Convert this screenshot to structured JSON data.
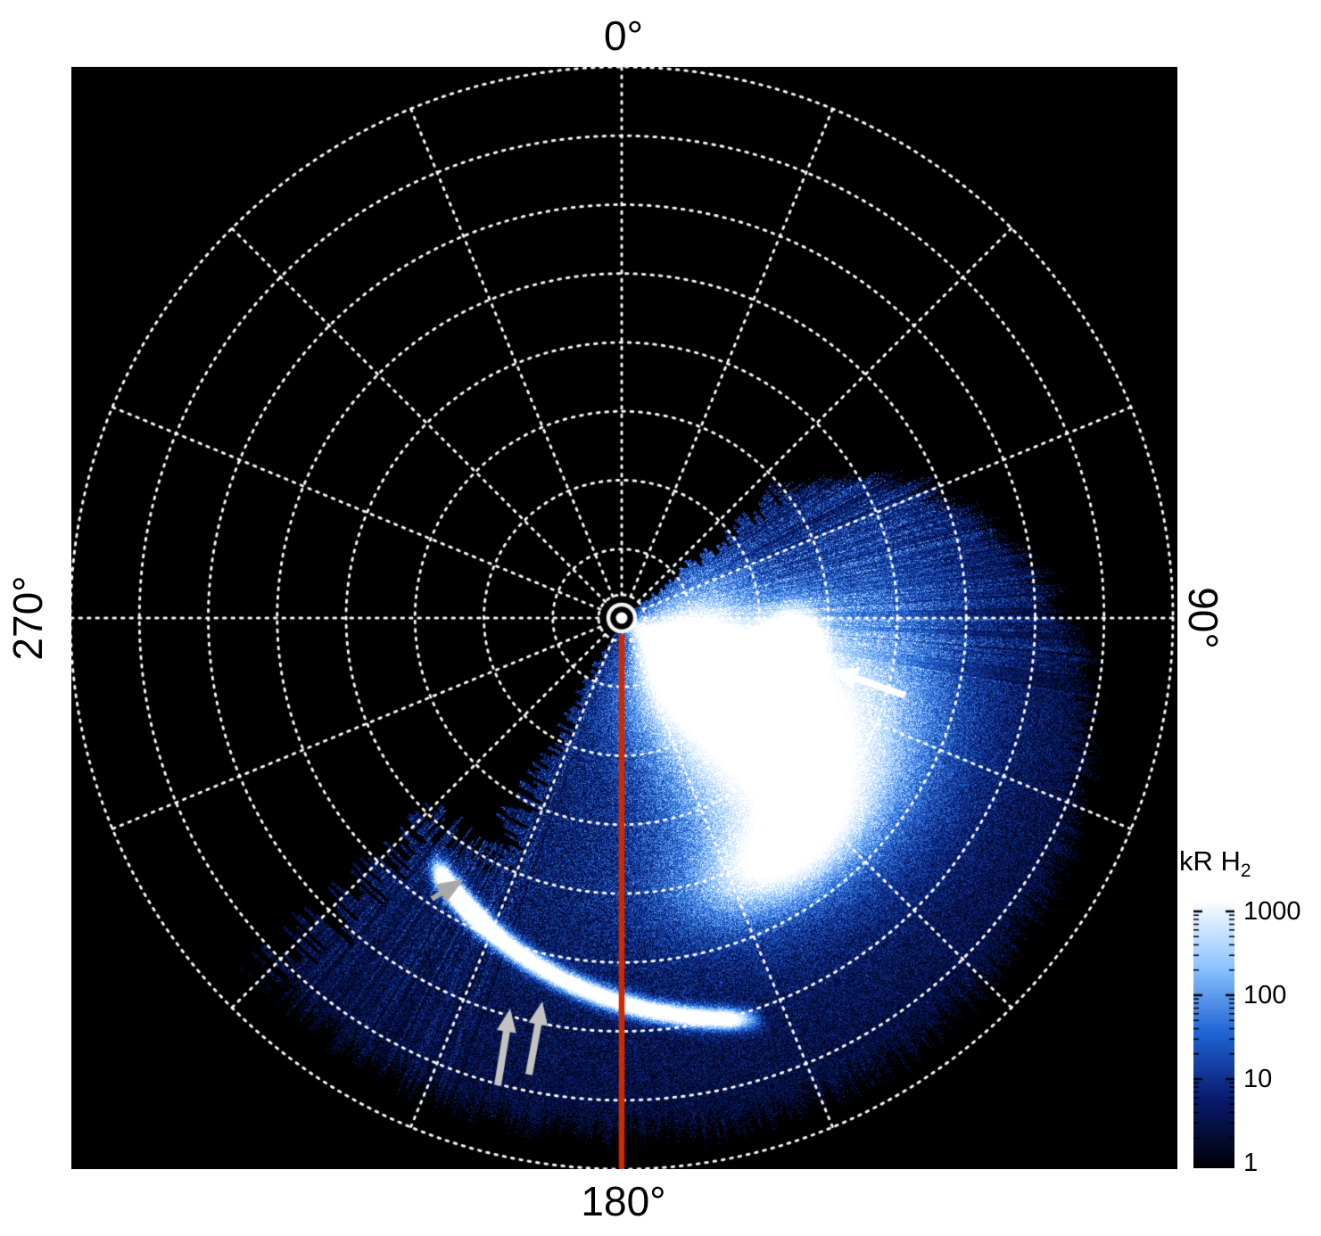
{
  "plot": {
    "angle_labels": [
      {
        "position": "top",
        "text": "0°"
      },
      {
        "position": "right",
        "text": "90°"
      },
      {
        "position": "bottom",
        "text": "180°"
      },
      {
        "position": "left",
        "text": "270°"
      }
    ]
  },
  "colorbar": {
    "title": "kR H",
    "title_sub": "2",
    "tick_labels": [
      "1000",
      "100",
      "10",
      "1"
    ]
  },
  "chart_data": {
    "type": "heatmap",
    "projection": "polar",
    "title": "Polar map of H2 auroral emission (kR H2), log color scale",
    "angle_tick_labels_deg": [
      0,
      90,
      180,
      270
    ],
    "angle_grid_spacing_deg": 22.5,
    "radial_grid_circles": 8,
    "grid_style": "white dotted",
    "background_color": "#000000",
    "colorbar": {
      "label": "kR H2",
      "scale": "log",
      "range": [
        1,
        1000
      ],
      "tick_values": [
        1000,
        100,
        10,
        1
      ],
      "colormap": [
        "#000004",
        "#08196b",
        "#1f63d4",
        "#8ec4ff",
        "#ffffff"
      ]
    },
    "emission": {
      "azimuth_extent_deg": [
        52,
        224
      ],
      "radial_extent_frac": [
        0.02,
        0.95
      ],
      "features": [
        {
          "name": "bright-emission-region",
          "azimuth_deg": 126,
          "radius_frac": 0.3,
          "intensity_kR": 1000
        },
        {
          "name": "bright-arc-segment-at-white-arrow",
          "azimuth_deg": 100,
          "radius_frac": 0.31,
          "intensity_kR": 1000
        },
        {
          "name": "thin-arc-at-gray-arrows",
          "azimuth_deg_span": [
            163,
            216
          ],
          "radius_frac_span": [
            0.76,
            0.57
          ],
          "intensity_kR": 800
        }
      ]
    },
    "reference_meridian": {
      "azimuth_deg": 180,
      "color": "#cc2a00"
    },
    "annotations": [
      {
        "type": "arrow",
        "color": "#ffffff",
        "count": 1,
        "points_to": "bright-arc-segment-at-white-arrow"
      },
      {
        "type": "arrow",
        "color": "#c2c2c2",
        "count": 2,
        "points_to": "thin-arc-at-gray-arrows"
      },
      {
        "type": "triangle-marker",
        "color": "#a8a8a8",
        "count": 1,
        "points_to": "thin-arc-at-gray-arrows"
      }
    ]
  }
}
